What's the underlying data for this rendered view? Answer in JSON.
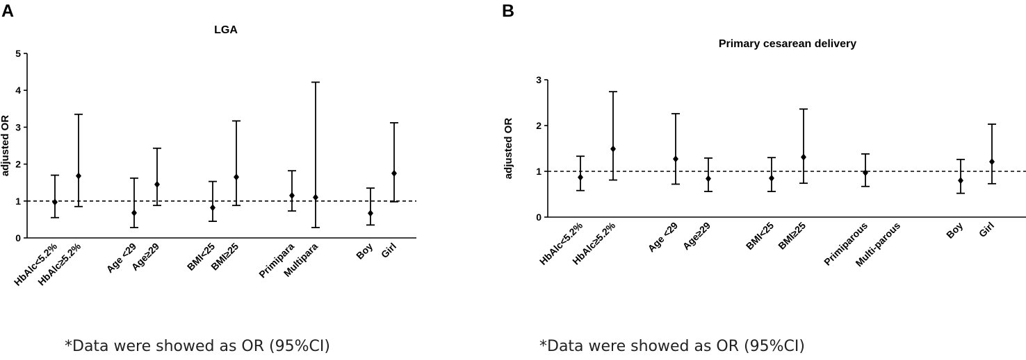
{
  "colors": {
    "ink": "#000000",
    "note": "#222222",
    "background": "#ffffff"
  },
  "chart_data": [
    {
      "panel": "A",
      "type": "scatter",
      "title": "LGA",
      "xlabel": "",
      "ylabel": "adjusted OR",
      "ylim": [
        0,
        5
      ],
      "yticks": [
        0,
        1,
        2,
        3,
        4,
        5
      ],
      "reference_line": 1,
      "grid": false,
      "categories": [
        "HbAlc<5.2%",
        "HbAlc≥5.2%",
        "Age <29",
        "Age≥29",
        "BMI<25",
        "BMI≥25",
        "Primipara",
        "Multipara",
        "Boy",
        "Girl"
      ],
      "values": [
        0.97,
        1.68,
        0.68,
        1.45,
        0.82,
        1.65,
        1.15,
        1.1,
        0.67,
        1.75
      ],
      "ci_lower": [
        0.55,
        0.85,
        0.28,
        0.88,
        0.45,
        0.88,
        0.73,
        0.28,
        0.35,
        0.98
      ],
      "ci_upper": [
        1.7,
        3.35,
        1.62,
        2.43,
        1.53,
        3.17,
        1.82,
        4.22,
        1.35,
        3.12
      ],
      "footnote": "*Data were showed as OR (95%CI)"
    },
    {
      "panel": "B",
      "type": "scatter",
      "title": "Primary cesarean delivery",
      "xlabel": "",
      "ylabel": "adjusted OR",
      "ylim": [
        0,
        3
      ],
      "yticks": [
        0,
        1,
        2,
        3
      ],
      "reference_line": 1,
      "grid": false,
      "categories": [
        "HbAlc<5.2%",
        "HbAlc≥5.2%",
        "Age <29",
        "Age≥29",
        "BMI<25",
        "BMI≥25",
        "Primiparous",
        "Multi-parous",
        "Boy",
        "Girl"
      ],
      "values": [
        0.87,
        1.49,
        1.27,
        0.84,
        0.85,
        1.31,
        0.97,
        null,
        0.8,
        1.21
      ],
      "ci_lower": [
        0.58,
        0.81,
        0.72,
        0.56,
        0.56,
        0.74,
        0.67,
        null,
        0.52,
        0.73
      ],
      "ci_upper": [
        1.33,
        2.74,
        2.26,
        1.29,
        1.3,
        2.36,
        1.38,
        null,
        1.26,
        2.03
      ],
      "footnote": "*Data were showed as OR (95%CI)"
    }
  ]
}
